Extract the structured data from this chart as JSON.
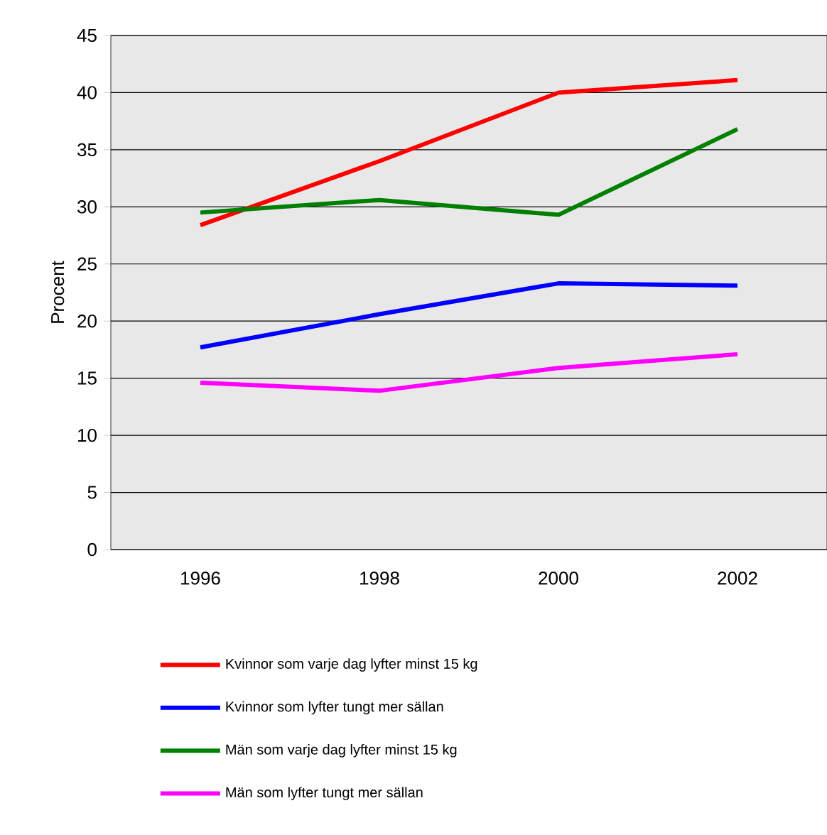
{
  "chart_data": {
    "type": "line",
    "ylabel": "Procent",
    "categories": [
      "1996",
      "1998",
      "2000",
      "2002"
    ],
    "series": [
      {
        "name": "Kvinnor som varje dag lyfter minst 15 kg",
        "color": "#ff0000",
        "values": [
          28.4,
          34.0,
          40.0,
          41.1
        ]
      },
      {
        "name": "Kvinnor som lyfter tungt mer sällan",
        "color": "#0000ff",
        "values": [
          17.7,
          20.6,
          23.3,
          23.1
        ]
      },
      {
        "name": "Män som varje dag lyfter minst 15 kg",
        "color": "#008000",
        "values": [
          29.5,
          30.6,
          29.3,
          36.8
        ]
      },
      {
        "name": "Män som lyfter tungt mer sällan",
        "color": "#ff00ff",
        "values": [
          14.6,
          13.9,
          15.9,
          17.1
        ]
      }
    ],
    "ylim": [
      0,
      45
    ],
    "yticks": [
      0,
      5,
      10,
      15,
      20,
      25,
      30,
      35,
      40,
      45
    ],
    "grid": "y",
    "legend": "bottom",
    "marker": "none",
    "line_style": "solid"
  }
}
